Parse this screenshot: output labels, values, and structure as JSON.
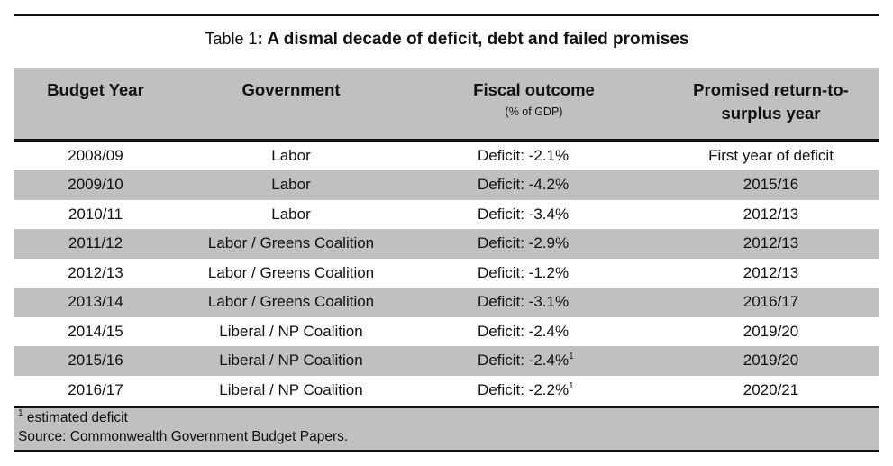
{
  "title": {
    "prefix": "Table 1",
    "text": ": A dismal decade of deficit, debt and failed promises"
  },
  "headers": {
    "budget_year": "Budget Year",
    "government": "Government",
    "fiscal_outcome": "Fiscal outcome",
    "fiscal_outcome_unit": "(% of GDP)",
    "promised_surplus": "Promised return-to-surplus year"
  },
  "rows": [
    {
      "year": "2008/09",
      "government": "Labor",
      "outcome": "Deficit:  -2.1%",
      "note": "",
      "promised": "First year of deficit"
    },
    {
      "year": "2009/10",
      "government": "Labor",
      "outcome": "Deficit:  -4.2%",
      "note": "",
      "promised": "2015/16"
    },
    {
      "year": "2010/11",
      "government": "Labor",
      "outcome": "Deficit:  -3.4%",
      "note": "",
      "promised": "2012/13"
    },
    {
      "year": "2011/12",
      "government": "Labor / Greens Coalition",
      "outcome": "Deficit:  -2.9%",
      "note": "",
      "promised": "2012/13"
    },
    {
      "year": "2012/13",
      "government": "Labor / Greens Coalition",
      "outcome": "Deficit:  -1.2%",
      "note": "",
      "promised": "2012/13"
    },
    {
      "year": "2013/14",
      "government": "Labor / Greens Coalition",
      "outcome": "Deficit:  -3.1%",
      "note": "",
      "promised": "2016/17"
    },
    {
      "year": "2014/15",
      "government": "Liberal / NP Coalition",
      "outcome": "Deficit:  -2.4%",
      "note": "",
      "promised": "2019/20"
    },
    {
      "year": "2015/16",
      "government": "Liberal / NP Coalition",
      "outcome": "Deficit:  -2.4%",
      "note": "1",
      "promised": "2019/20"
    },
    {
      "year": "2016/17",
      "government": "Liberal / NP Coalition",
      "outcome": "Deficit:  -2.2%",
      "note": "1",
      "promised": "2020/21"
    }
  ],
  "footnote": {
    "mark": "1",
    "text": " estimated deficit",
    "source": "Source: Commonwealth Government Budget Papers."
  },
  "colors": {
    "shade": "#c0c0c0",
    "rule": "#111111"
  }
}
